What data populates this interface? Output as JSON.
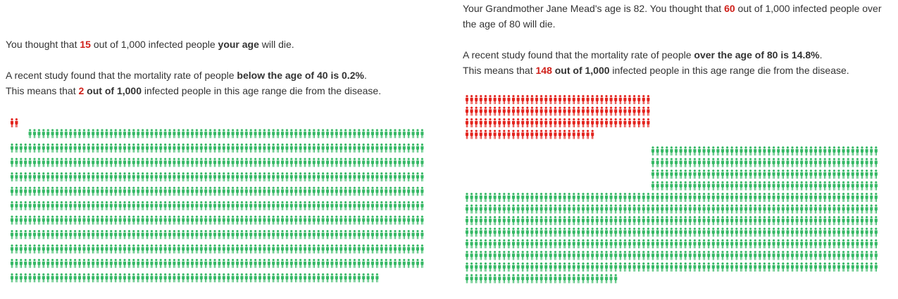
{
  "panels": [
    {
      "paragraphs": [
        [
          {
            "text": "You thought that "
          },
          {
            "text": "15",
            "style": "red"
          },
          {
            "text": " out of 1,000 infected people "
          },
          {
            "text": "your age",
            "style": "bold"
          },
          {
            "text": " will die."
          }
        ],
        [
          {
            "text": "A recent study found that the mortality rate of people "
          },
          {
            "text": "below the age of 40 is 0.2%",
            "style": "bold"
          },
          {
            "text": "."
          }
        ],
        [
          {
            "text": "This means that "
          },
          {
            "text": "2",
            "style": "red"
          },
          {
            "text": " out of 1,000",
            "style": "bold"
          },
          {
            "text": " infected people in this age range die from the disease."
          }
        ]
      ],
      "pictogram": {
        "total": 1000,
        "highlighted": 2,
        "color": "#35b865",
        "highlight_color": "#e3231d"
      }
    },
    {
      "paragraphs": [
        [
          {
            "text": "Your Grandmother Jane Mead's age is 82. You thought that "
          },
          {
            "text": "60",
            "style": "red"
          },
          {
            "text": " out of 1,000 infected people over the age of 80 will die."
          }
        ],
        [
          {
            "text": "A recent study found that the mortality rate of people "
          },
          {
            "text": "over the age of 80 is 14.8%",
            "style": "bold"
          },
          {
            "text": "."
          }
        ],
        [
          {
            "text": "This means that "
          },
          {
            "text": "148",
            "style": "red"
          },
          {
            "text": " out of 1,000",
            "style": "bold"
          },
          {
            "text": " infected people in this age range die from the disease."
          }
        ]
      ],
      "pictogram": {
        "total": 1000,
        "highlighted": 148,
        "color": "#35b865",
        "highlight_color": "#e3231d"
      }
    }
  ]
}
